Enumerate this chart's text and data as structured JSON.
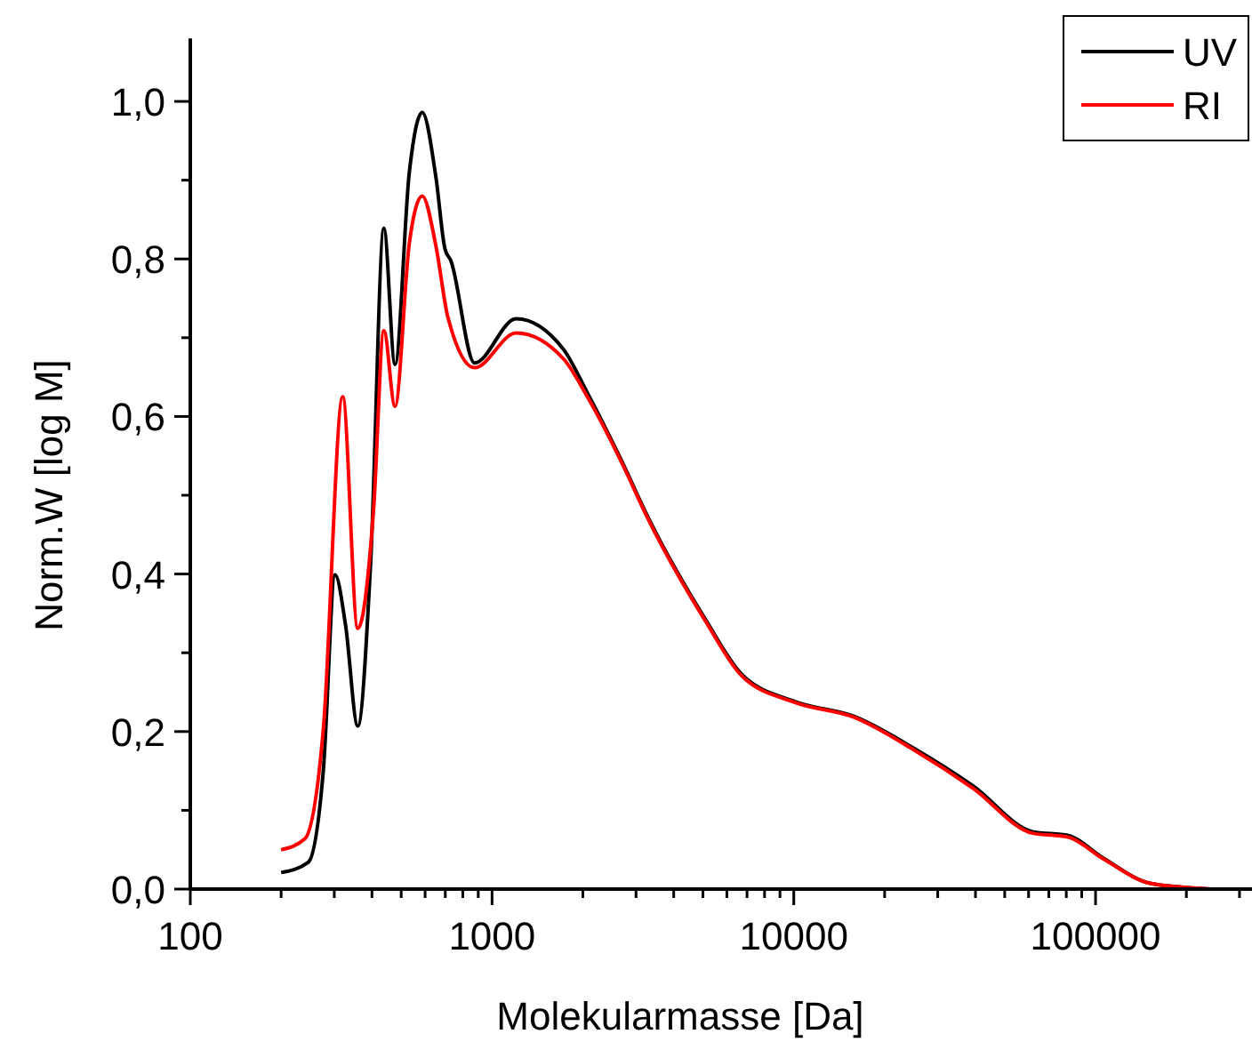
{
  "chart_data": {
    "type": "line",
    "xlabel": "Molekularmasse [Da]",
    "ylabel": "Norm.W [log M]",
    "log": "x",
    "xlim": [
      100,
      330000
    ],
    "ylim": [
      0,
      1.08
    ],
    "xticks": [
      100,
      {
        "value": 200,
        "label": null
      },
      {
        "value": 300,
        "label": null
      },
      {
        "value": 400,
        "label": null
      },
      {
        "value": 500,
        "label": null
      },
      {
        "value": 600,
        "label": null
      },
      {
        "value": 700,
        "label": null
      },
      {
        "value": 800,
        "label": null
      },
      {
        "value": 900,
        "label": null
      },
      1000,
      {
        "value": 2000,
        "label": null
      },
      {
        "value": 3000,
        "label": null
      },
      {
        "value": 4000,
        "label": null
      },
      {
        "value": 5000,
        "label": null
      },
      {
        "value": 6000,
        "label": null
      },
      {
        "value": 7000,
        "label": null
      },
      {
        "value": 8000,
        "label": null
      },
      {
        "value": 9000,
        "label": null
      },
      10000,
      {
        "value": 20000,
        "label": null
      },
      {
        "value": 30000,
        "label": null
      },
      {
        "value": 40000,
        "label": null
      },
      {
        "value": 50000,
        "label": null
      },
      {
        "value": 60000,
        "label": null
      },
      {
        "value": 70000,
        "label": null
      },
      {
        "value": 80000,
        "label": null
      },
      {
        "value": 90000,
        "label": null
      },
      100000,
      {
        "value": 200000,
        "label": null
      },
      {
        "value": 300000,
        "label": null
      }
    ],
    "yticks": [
      {
        "value": 0,
        "label": "0,0"
      },
      {
        "value": 0.1,
        "label": null
      },
      {
        "value": 0.2,
        "label": "0,2"
      },
      {
        "value": 0.3,
        "label": null
      },
      {
        "value": 0.4,
        "label": "0,4"
      },
      {
        "value": 0.5,
        "label": null
      },
      {
        "value": 0.6,
        "label": "0,6"
      },
      {
        "value": 0.7,
        "label": null
      },
      {
        "value": 0.8,
        "label": "0,8"
      },
      {
        "value": 0.9,
        "label": null
      },
      {
        "value": 1.0,
        "label": "1,0"
      }
    ],
    "grid": false,
    "legend": "top right",
    "marker": "none",
    "line_style": "solid",
    "series": [
      {
        "name": "UV",
        "color": "#000000",
        "x": [
          200,
          246,
          276,
          302,
          327,
          359,
          396,
          438,
          477,
          532,
          587,
          652,
          698,
          730,
          875,
          1202,
          1726,
          2070,
          2717,
          3250,
          5120,
          6710,
          10090,
          15880,
          24950,
          39260,
          61800,
          81100,
          106400,
          152800,
          240000
        ],
        "values": [
          0.021,
          0.034,
          0.151,
          0.399,
          0.335,
          0.207,
          0.414,
          0.839,
          0.666,
          0.91,
          0.986,
          0.903,
          0.813,
          0.798,
          0.668,
          0.724,
          0.685,
          0.63,
          0.54,
          0.476,
          0.341,
          0.273,
          0.238,
          0.219,
          0.179,
          0.131,
          0.073,
          0.068,
          0.039,
          0.007,
          0.0
        ]
      },
      {
        "name": "RI",
        "color": "#ff0000",
        "x": [
          200,
          240,
          276,
          320,
          359,
          405,
          438,
          477,
          532,
          587,
          652,
          714,
          875,
          1202,
          1726,
          2070,
          2717,
          3250,
          5120,
          6710,
          10090,
          15880,
          24950,
          39260,
          61800,
          81100,
          106400,
          152800,
          240000
        ],
        "values": [
          0.05,
          0.064,
          0.203,
          0.625,
          0.331,
          0.482,
          0.709,
          0.613,
          0.82,
          0.88,
          0.816,
          0.726,
          0.662,
          0.706,
          0.673,
          0.625,
          0.538,
          0.474,
          0.339,
          0.271,
          0.237,
          0.218,
          0.177,
          0.128,
          0.071,
          0.066,
          0.038,
          0.007,
          0.0
        ]
      }
    ]
  }
}
